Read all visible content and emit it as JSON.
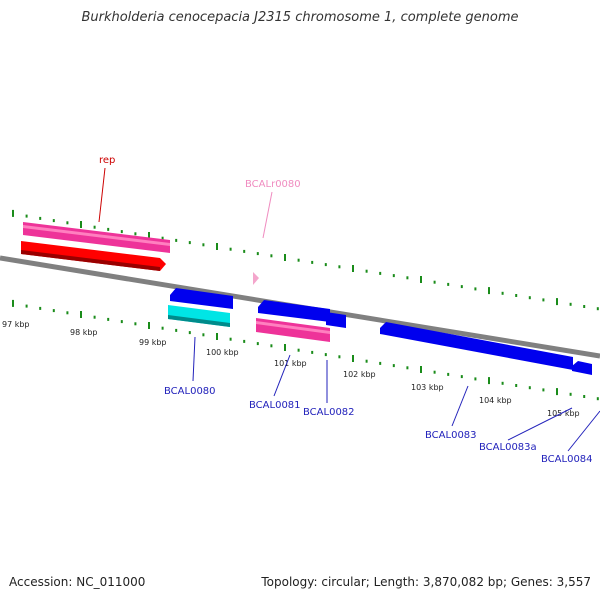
{
  "title": "Burkholderia cenocepacia J2315 chromosome 1, complete genome",
  "footer": {
    "accession": "Accession: NC_011000",
    "summary": "Topology: circular; Length: 3,870,082 bp; Genes: 3,557"
  },
  "kbp_labels": [
    "97 kbp",
    "98 kbp",
    "99 kbp",
    "100 kbp",
    "101 kbp",
    "102 kbp",
    "103 kbp",
    "104 kbp",
    "105 kbp"
  ],
  "features": [
    {
      "name": "rep",
      "color": "#cc0000"
    },
    {
      "name": "BCALr0080",
      "color": "#f08cc0"
    },
    {
      "name": "BCAL0080",
      "color": "#2222bb"
    },
    {
      "name": "BCAL0081",
      "color": "#2222bb"
    },
    {
      "name": "BCAL0082",
      "color": "#2222bb"
    },
    {
      "name": "BCAL0083",
      "color": "#2222bb"
    },
    {
      "name": "BCAL0083a",
      "color": "#2222bb"
    },
    {
      "name": "BCAL0084",
      "color": "#2222bb"
    }
  ],
  "colors": {
    "backbone": "#808080",
    "tick": "#1a8c1a",
    "forward_gene": "#ff0000",
    "reverse_gene": "#0000ee",
    "rrna_like": "#ee3399",
    "other_gene": "#00e5e5",
    "rna_marker": "#f4a6cc"
  }
}
